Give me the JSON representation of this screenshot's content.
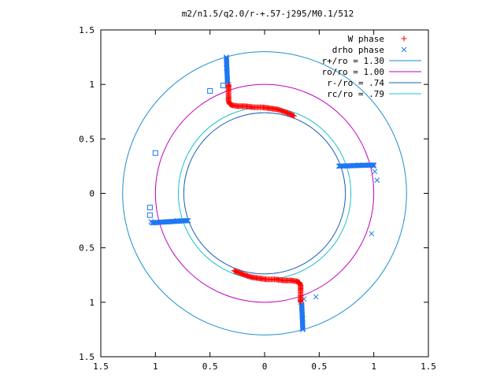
{
  "chart_data": {
    "type": "scatter",
    "title": "m2/n1.5/q2.0/r-+.57-j295/M0.1/512",
    "xlabel": "",
    "ylabel": "",
    "xlim": [
      -1.5,
      1.5
    ],
    "ylim": [
      -1.5,
      1.5
    ],
    "x_ticks": [
      -1.5,
      -1,
      -0.5,
      0,
      0.5,
      1,
      1.5
    ],
    "y_ticks": [
      -1.5,
      -1,
      -0.5,
      0,
      0.5,
      1,
      1.5
    ],
    "x_tick_labels": [
      "1.5",
      "1",
      "0.5",
      "0",
      "0.5",
      "1",
      "1.5"
    ],
    "y_tick_labels": [
      "1.5",
      "1",
      "0.5",
      "0",
      "0.5",
      "1",
      "1.5"
    ],
    "grid": false,
    "legend_position": "top-right",
    "series": [
      {
        "name": "W phase",
        "marker": "plus",
        "color": "#ff0000",
        "curve_upper": [
          [
            -0.33,
            1.0
          ],
          [
            -0.33,
            0.95
          ],
          [
            -0.33,
            0.9
          ],
          [
            -0.33,
            0.85
          ],
          [
            -0.32,
            0.82
          ],
          [
            -0.3,
            0.81
          ],
          [
            -0.25,
            0.8
          ],
          [
            -0.18,
            0.8
          ],
          [
            -0.1,
            0.79
          ],
          [
            -0.02,
            0.79
          ],
          [
            0.05,
            0.78
          ],
          [
            0.12,
            0.77
          ],
          [
            0.18,
            0.75
          ],
          [
            0.23,
            0.73
          ],
          [
            0.27,
            0.71
          ]
        ],
        "curve_lower": [
          [
            0.33,
            -1.0
          ],
          [
            0.33,
            -0.95
          ],
          [
            0.33,
            -0.9
          ],
          [
            0.33,
            -0.85
          ],
          [
            0.32,
            -0.82
          ],
          [
            0.3,
            -0.81
          ],
          [
            0.25,
            -0.8
          ],
          [
            0.18,
            -0.8
          ],
          [
            0.1,
            -0.79
          ],
          [
            0.02,
            -0.79
          ],
          [
            -0.05,
            -0.78
          ],
          [
            -0.12,
            -0.77
          ],
          [
            -0.18,
            -0.75
          ],
          [
            -0.23,
            -0.73
          ],
          [
            -0.28,
            -0.71
          ]
        ]
      },
      {
        "name": "drho phase",
        "marker": "cross",
        "color": "#1f77f4",
        "points": [
          [
            -0.35,
            1.25
          ],
          [
            -0.35,
            1.15
          ],
          [
            -0.34,
            1.05
          ],
          [
            -0.33,
            1.0
          ],
          [
            -0.38,
            0.99
          ],
          [
            -0.5,
            0.94
          ],
          [
            -1.0,
            0.37
          ],
          [
            -1.05,
            -0.13
          ],
          [
            -1.05,
            -0.2
          ],
          [
            -1.04,
            -0.26
          ],
          [
            -1.0,
            -0.27
          ],
          [
            -0.9,
            -0.26
          ],
          [
            -0.8,
            -0.25
          ],
          [
            -0.7,
            -0.25
          ],
          [
            0.35,
            -1.25
          ],
          [
            0.35,
            -1.15
          ],
          [
            0.34,
            -1.05
          ],
          [
            0.33,
            -1.0
          ],
          [
            0.36,
            -0.97
          ],
          [
            0.47,
            -0.95
          ],
          [
            0.98,
            -0.37
          ],
          [
            1.03,
            0.12
          ],
          [
            1.01,
            0.2
          ],
          [
            1.0,
            0.25
          ],
          [
            0.96,
            0.26
          ],
          [
            0.86,
            0.26
          ],
          [
            0.76,
            0.25
          ],
          [
            0.68,
            0.25
          ]
        ]
      }
    ],
    "circles": [
      {
        "name": "r+/ro = 1.30",
        "radius": 1.3,
        "color": "#1a8fd0"
      },
      {
        "name": "ro/ro = 1.00",
        "radius": 1.0,
        "color": "#c000c0"
      },
      {
        "name": "r-/ro = .74",
        "radius": 0.74,
        "color": "#1a5fbf"
      },
      {
        "name": "rc/ro = .79",
        "radius": 0.79,
        "color": "#20c0c8"
      }
    ]
  }
}
